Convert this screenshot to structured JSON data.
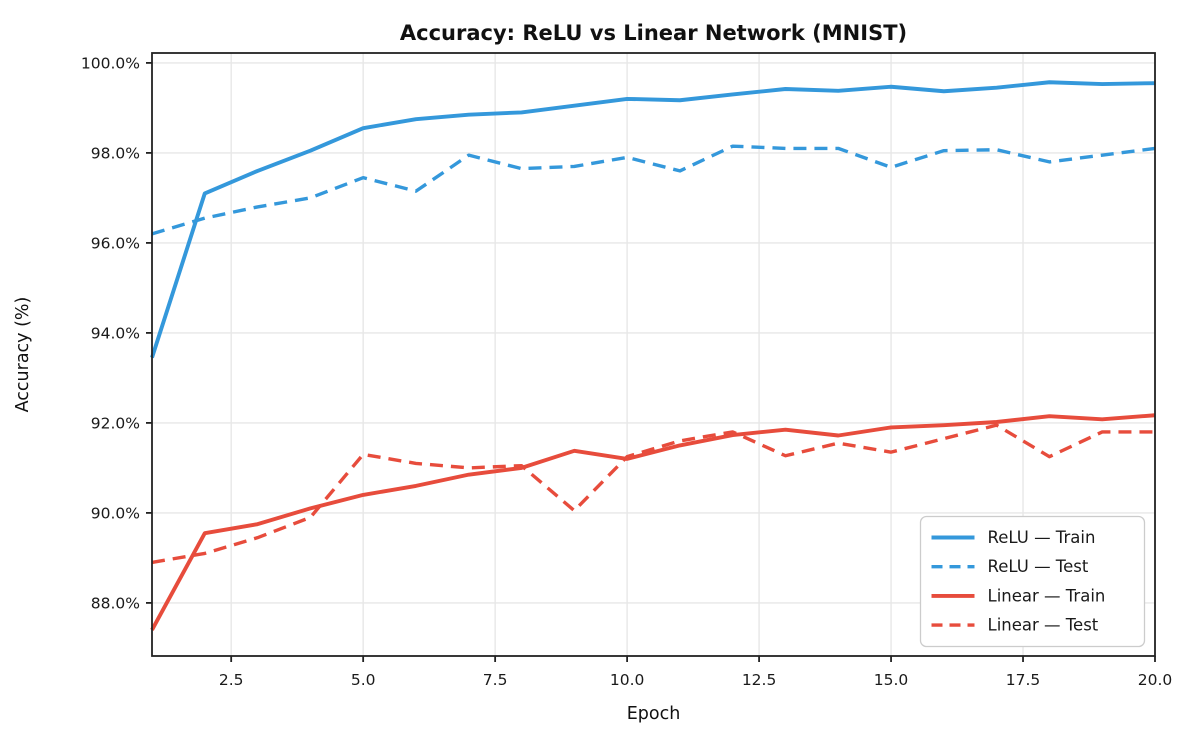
{
  "chart_data": {
    "type": "line",
    "title": "Accuracy: ReLU vs Linear Network (MNIST)",
    "xlabel": "Epoch",
    "ylabel": "Accuracy (%)",
    "x": [
      1,
      2,
      3,
      4,
      5,
      6,
      7,
      8,
      9,
      10,
      11,
      12,
      13,
      14,
      15,
      16,
      17,
      18,
      19,
      20
    ],
    "series": [
      {
        "name": "ReLU — Train",
        "color": "#3498db",
        "style": "solid",
        "values": [
          93.45,
          97.1,
          97.6,
          98.05,
          98.55,
          98.75,
          98.85,
          98.9,
          99.05,
          99.2,
          99.17,
          99.3,
          99.42,
          99.38,
          99.47,
          99.37,
          99.45,
          99.57,
          99.53,
          99.55
        ]
      },
      {
        "name": "ReLU — Test",
        "color": "#3498db",
        "style": "dashed",
        "values": [
          96.2,
          96.55,
          96.8,
          97.0,
          97.45,
          97.15,
          97.95,
          97.65,
          97.7,
          97.9,
          97.6,
          98.15,
          98.1,
          98.1,
          97.68,
          98.05,
          98.07,
          97.8,
          97.95,
          98.1
        ]
      },
      {
        "name": "Linear — Train",
        "color": "#e74c3c",
        "style": "solid",
        "values": [
          87.4,
          89.55,
          89.75,
          90.1,
          90.4,
          90.6,
          90.85,
          91.0,
          91.38,
          91.2,
          91.5,
          91.73,
          91.85,
          91.72,
          91.9,
          91.95,
          92.02,
          92.15,
          92.08,
          92.17
        ]
      },
      {
        "name": "Linear — Test",
        "color": "#e74c3c",
        "style": "dashed",
        "values": [
          88.9,
          89.1,
          89.45,
          89.9,
          91.3,
          91.1,
          91.0,
          91.05,
          90.05,
          91.25,
          91.6,
          91.8,
          91.27,
          91.55,
          91.35,
          91.65,
          91.95,
          91.25,
          91.8,
          91.8
        ]
      }
    ],
    "xlim": [
      1,
      20
    ],
    "ylim": [
      86.82,
      100.22
    ],
    "xticks": {
      "values": [
        2.5,
        5,
        7.5,
        10,
        12.5,
        15,
        17.5,
        20
      ],
      "labels": [
        "2.5",
        "5.0",
        "7.5",
        "10.0",
        "12.5",
        "15.0",
        "17.5",
        "20.0"
      ]
    },
    "yticks": {
      "values": [
        88,
        90,
        92,
        94,
        96,
        98,
        100
      ],
      "labels": [
        "88.0%",
        "90.0%",
        "92.0%",
        "94.0%",
        "96.0%",
        "98.0%",
        "100.0%"
      ]
    },
    "grid": true,
    "legend_position": "lower right",
    "legend_labels": [
      "ReLU — Train",
      "ReLU — Test",
      "Linear — Train",
      "Linear — Test"
    ]
  },
  "colors": {
    "relu": "#3498db",
    "linear": "#e74c3c",
    "grid": "#e7e7e7",
    "spine": "#222222",
    "legend_border": "#cccccc",
    "background": "#ffffff"
  }
}
